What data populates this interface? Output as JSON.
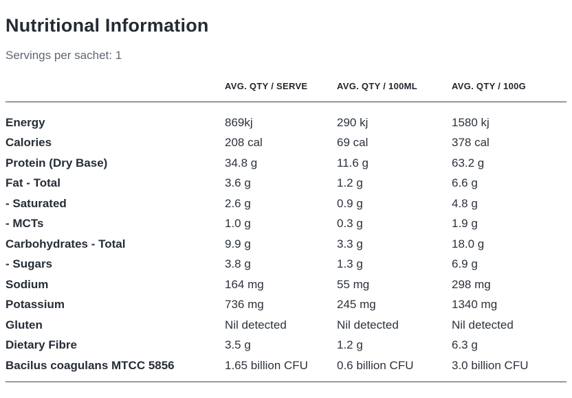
{
  "page": {
    "title": "Nutritional Information",
    "subtitle": "Servings per sachet: 1"
  },
  "table": {
    "columns": [
      "",
      "AVG. QTY / SERVE",
      "AVG. QTY / 100ML",
      "AVG. QTY / 100G"
    ],
    "rows": [
      {
        "label": "Energy",
        "serve": "869kj",
        "per100ml": "290 kj",
        "per100g": "1580 kj"
      },
      {
        "label": "Calories",
        "serve": "208 cal",
        "per100ml": "69 cal",
        "per100g": "378 cal"
      },
      {
        "label": "Protein (Dry Base)",
        "serve": "34.8 g",
        "per100ml": "11.6 g",
        "per100g": "63.2 g"
      },
      {
        "label": "Fat - Total",
        "serve": "3.6 g",
        "per100ml": "1.2 g",
        "per100g": "6.6 g"
      },
      {
        "label": "- Saturated",
        "serve": "2.6 g",
        "per100ml": "0.9 g",
        "per100g": "4.8 g"
      },
      {
        "label": "- MCTs",
        "serve": "1.0 g",
        "per100ml": "0.3 g",
        "per100g": "1.9 g"
      },
      {
        "label": "Carbohydrates - Total",
        "serve": "9.9 g",
        "per100ml": "3.3 g",
        "per100g": "18.0 g"
      },
      {
        "label": "- Sugars",
        "serve": "3.8 g",
        "per100ml": "1.3 g",
        "per100g": "6.9 g"
      },
      {
        "label": "Sodium",
        "serve": "164 mg",
        "per100ml": "55 mg",
        "per100g": "298 mg"
      },
      {
        "label": "Potassium",
        "serve": "736 mg",
        "per100ml": "245 mg",
        "per100g": "1340 mg"
      },
      {
        "label": "Gluten",
        "serve": "Nil detected",
        "per100ml": "Nil detected",
        "per100g": "Nil detected"
      },
      {
        "label": "Dietary Fibre",
        "serve": "3.5 g",
        "per100ml": "1.2 g",
        "per100g": "6.3 g"
      },
      {
        "label": "Bacilus coagulans MTCC 5856",
        "serve": "1.65 billion CFU",
        "per100ml": "0.6 billion CFU",
        "per100g": "3.0 billion CFU"
      }
    ]
  },
  "colors": {
    "background": "#ffffff",
    "text_primary": "#2b323c",
    "text_title": "#242b33",
    "text_secondary": "#5d6670",
    "divider": "#3c4043"
  }
}
